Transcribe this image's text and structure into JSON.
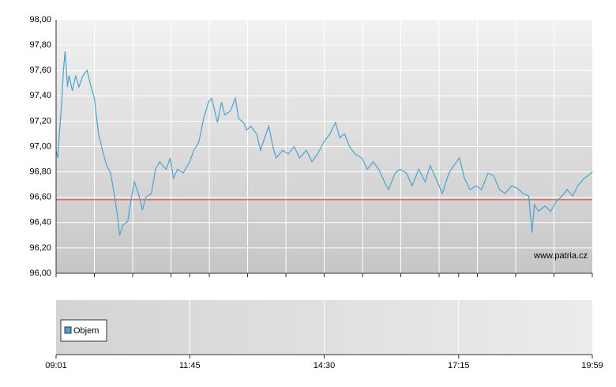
{
  "chart_data": {
    "type": "line",
    "color": "#4ba3cf",
    "x": [
      541,
      543,
      545,
      548,
      550,
      552,
      555,
      557,
      561,
      565,
      569,
      574,
      579,
      584,
      588,
      593,
      598,
      603,
      608,
      613,
      616,
      619,
      623,
      629,
      632,
      637,
      642,
      647,
      651,
      658,
      663,
      668,
      676,
      681,
      685,
      690,
      697,
      705,
      710,
      716,
      722,
      728,
      732,
      739,
      744,
      748,
      755,
      761,
      765,
      771,
      775,
      780,
      787,
      792,
      797,
      802,
      807,
      811,
      819,
      826,
      833,
      840,
      848,
      855,
      862,
      869,
      877,
      884,
      889,
      895,
      901,
      908,
      916,
      923,
      930,
      937,
      944,
      949,
      957,
      963,
      971,
      978,
      986,
      994,
      1000,
      1007,
      1015,
      1023,
      1029,
      1036,
      1042,
      1049,
      1056,
      1063,
      1071,
      1078,
      1085,
      1092,
      1100,
      1107,
      1114,
      1121,
      1125,
      1128,
      1133,
      1141,
      1148,
      1155,
      1162,
      1168,
      1175,
      1181,
      1189,
      1194,
      1199
    ],
    "values": [
      96.97,
      96.91,
      97.1,
      97.35,
      97.6,
      97.75,
      97.47,
      97.56,
      97.44,
      97.56,
      97.47,
      97.56,
      97.6,
      97.47,
      97.38,
      97.1,
      96.97,
      96.85,
      96.79,
      96.6,
      96.47,
      96.3,
      96.38,
      96.41,
      96.54,
      96.72,
      96.63,
      96.5,
      96.6,
      96.63,
      96.82,
      96.88,
      96.82,
      96.91,
      96.75,
      96.82,
      96.79,
      96.88,
      96.97,
      97.03,
      97.22,
      97.35,
      97.38,
      97.19,
      97.35,
      97.25,
      97.28,
      97.38,
      97.22,
      97.19,
      97.13,
      97.16,
      97.1,
      96.97,
      97.07,
      97.16,
      97.0,
      96.91,
      96.97,
      96.94,
      97.0,
      96.91,
      96.97,
      96.88,
      96.94,
      97.03,
      97.1,
      97.19,
      97.07,
      97.1,
      97.0,
      96.94,
      96.91,
      96.82,
      96.88,
      96.82,
      96.72,
      96.66,
      96.79,
      96.82,
      96.79,
      96.69,
      96.82,
      96.72,
      96.85,
      96.75,
      96.63,
      96.79,
      96.85,
      96.91,
      96.75,
      96.66,
      96.69,
      96.66,
      96.79,
      96.77,
      96.66,
      96.63,
      96.69,
      96.67,
      96.63,
      96.61,
      96.32,
      96.54,
      96.49,
      96.53,
      96.49,
      96.57,
      96.61,
      96.66,
      96.61,
      96.69,
      96.75,
      96.77,
      96.8
    ],
    "reference_line": 96.58,
    "reference_color": "#e03030",
    "ylim": [
      96.0,
      98.0
    ],
    "yticks": [
      {
        "value": 96.0,
        "label": "96,00"
      },
      {
        "value": 96.2,
        "label": "96,20"
      },
      {
        "value": 96.4,
        "label": "96,40"
      },
      {
        "value": 96.6,
        "label": "96,60"
      },
      {
        "value": 96.8,
        "label": "96,80"
      },
      {
        "value": 97.0,
        "label": "97,00"
      },
      {
        "value": 97.2,
        "label": "97,20"
      },
      {
        "value": 97.4,
        "label": "97,40"
      },
      {
        "value": 97.6,
        "label": "97,60"
      },
      {
        "value": 97.8,
        "label": "97,80"
      },
      {
        "value": 98.0,
        "label": "98,00"
      }
    ],
    "xlim": [
      541,
      1199
    ],
    "xticks": [
      {
        "value": 541,
        "label": "09:01"
      },
      {
        "value": 705,
        "label": "11:45"
      },
      {
        "value": 870,
        "label": "14:30"
      },
      {
        "value": 1035,
        "label": "17:15"
      },
      {
        "value": 1199,
        "label": "19:59"
      }
    ],
    "xgrid": [
      588,
      635,
      682,
      729,
      776,
      823,
      870,
      917,
      964,
      1011,
      1058,
      1105,
      1152
    ],
    "grid": true,
    "source": "www.patria.cz",
    "volume_legend": "Objem",
    "volume_color": "#4ba3cf"
  }
}
